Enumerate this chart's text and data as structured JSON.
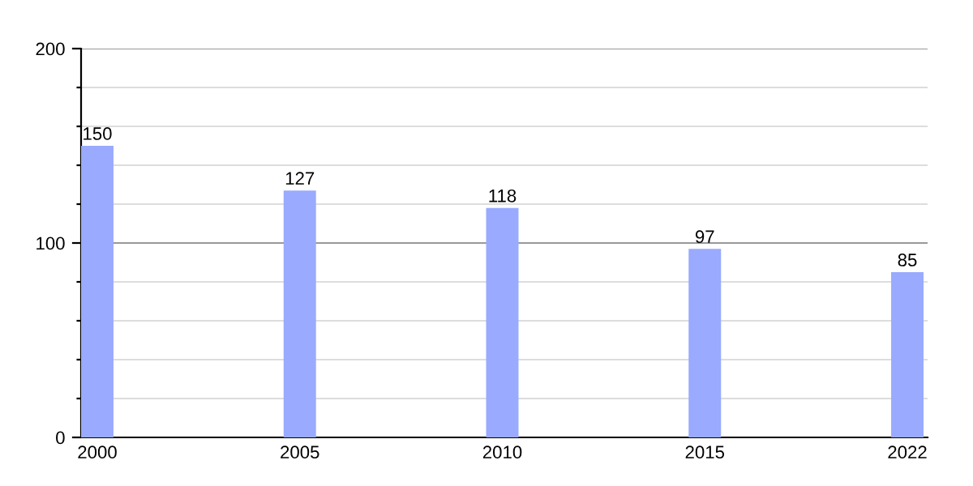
{
  "chart_data": {
    "type": "bar",
    "categories": [
      "2000",
      "2005",
      "2010",
      "2015",
      "2022"
    ],
    "values": [
      150,
      127,
      118,
      97,
      85
    ],
    "color": "#99aaff",
    "data_labels": true,
    "ylim": [
      0,
      200
    ],
    "yticks": [
      0,
      {
        "value": 20,
        "label": null
      },
      {
        "value": 40,
        "label": null
      },
      {
        "value": 60,
        "label": null
      },
      {
        "value": 80,
        "label": null
      },
      100,
      {
        "value": 120,
        "label": null
      },
      {
        "value": 140,
        "label": null
      },
      {
        "value": 160,
        "label": null
      },
      {
        "value": 180,
        "label": null
      },
      200
    ],
    "grid": "y",
    "ref_lines": [
      {
        "axis": "y",
        "value": 100,
        "color": "#999999"
      }
    ]
  }
}
